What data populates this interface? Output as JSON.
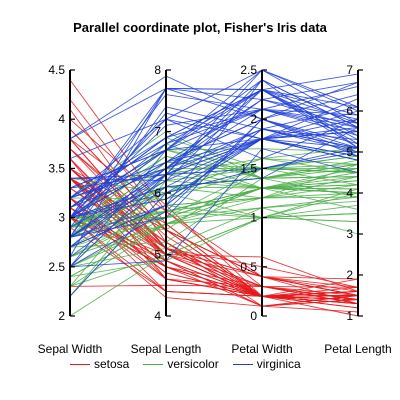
{
  "chart_data": {
    "type": "parallel-coordinates",
    "title": "Parallel coordinate plot, Fisher's Iris data",
    "axes": [
      {
        "name": "Sepal Width",
        "range": [
          2,
          4.5
        ],
        "ticks": [
          "2",
          "2.5",
          "3",
          "3.5",
          "4",
          "4.5"
        ],
        "tick_values": [
          2,
          2.5,
          3,
          3.5,
          4,
          4.5
        ]
      },
      {
        "name": "Sepal Length",
        "range": [
          4,
          8
        ],
        "ticks": [
          "4",
          "5",
          "6",
          "7",
          "8"
        ],
        "tick_values": [
          4,
          5,
          6,
          7,
          8
        ]
      },
      {
        "name": "Petal Width",
        "range": [
          0,
          2.5
        ],
        "ticks": [
          "0",
          "0.5",
          "1",
          "1.5",
          "2",
          "2.5"
        ],
        "tick_values": [
          0,
          0.5,
          1,
          1.5,
          2,
          2.5
        ]
      },
      {
        "name": "Petal Length",
        "range": [
          1,
          7
        ],
        "ticks": [
          "1",
          "2",
          "3",
          "4",
          "5",
          "6",
          "7"
        ],
        "tick_values": [
          1,
          2,
          3,
          4,
          5,
          6,
          7
        ]
      }
    ],
    "series": [
      {
        "name": "setosa",
        "color": "#e41a1c",
        "records": [
          [
            3.5,
            5.1,
            0.2,
            1.4
          ],
          [
            3.0,
            4.9,
            0.2,
            1.4
          ],
          [
            3.2,
            4.7,
            0.2,
            1.3
          ],
          [
            3.1,
            4.6,
            0.2,
            1.5
          ],
          [
            3.6,
            5.0,
            0.2,
            1.4
          ],
          [
            3.9,
            5.4,
            0.4,
            1.7
          ],
          [
            3.4,
            4.6,
            0.3,
            1.4
          ],
          [
            3.4,
            5.0,
            0.2,
            1.5
          ],
          [
            2.9,
            4.4,
            0.2,
            1.4
          ],
          [
            3.1,
            4.9,
            0.1,
            1.5
          ],
          [
            3.7,
            5.4,
            0.2,
            1.5
          ],
          [
            3.4,
            4.8,
            0.2,
            1.6
          ],
          [
            3.0,
            4.8,
            0.1,
            1.4
          ],
          [
            3.0,
            4.3,
            0.1,
            1.1
          ],
          [
            4.0,
            5.8,
            0.2,
            1.2
          ],
          [
            4.4,
            5.7,
            0.4,
            1.5
          ],
          [
            3.9,
            5.4,
            0.4,
            1.3
          ],
          [
            3.5,
            5.1,
            0.3,
            1.4
          ],
          [
            3.8,
            5.7,
            0.3,
            1.7
          ],
          [
            3.8,
            5.1,
            0.3,
            1.5
          ],
          [
            3.4,
            5.4,
            0.2,
            1.7
          ],
          [
            3.7,
            5.1,
            0.4,
            1.5
          ],
          [
            3.6,
            4.6,
            0.2,
            1.0
          ],
          [
            3.3,
            5.1,
            0.5,
            1.7
          ],
          [
            3.4,
            4.8,
            0.2,
            1.9
          ],
          [
            3.0,
            5.0,
            0.2,
            1.6
          ],
          [
            3.4,
            5.0,
            0.4,
            1.6
          ],
          [
            3.5,
            5.2,
            0.2,
            1.5
          ],
          [
            3.4,
            5.2,
            0.2,
            1.4
          ],
          [
            3.2,
            4.7,
            0.2,
            1.6
          ],
          [
            3.1,
            4.8,
            0.2,
            1.6
          ],
          [
            3.4,
            5.4,
            0.4,
            1.5
          ],
          [
            4.1,
            5.2,
            0.1,
            1.5
          ],
          [
            4.2,
            5.5,
            0.2,
            1.4
          ],
          [
            3.1,
            4.9,
            0.2,
            1.5
          ],
          [
            3.2,
            5.0,
            0.2,
            1.2
          ],
          [
            3.5,
            5.5,
            0.2,
            1.3
          ],
          [
            3.6,
            4.9,
            0.1,
            1.4
          ],
          [
            3.0,
            4.4,
            0.2,
            1.3
          ],
          [
            3.4,
            5.1,
            0.2,
            1.5
          ],
          [
            3.5,
            5.0,
            0.3,
            1.3
          ],
          [
            2.3,
            4.5,
            0.3,
            1.3
          ],
          [
            3.2,
            4.4,
            0.2,
            1.3
          ],
          [
            3.5,
            5.0,
            0.6,
            1.6
          ],
          [
            3.8,
            5.1,
            0.4,
            1.9
          ],
          [
            3.0,
            4.8,
            0.3,
            1.4
          ],
          [
            3.8,
            5.1,
            0.2,
            1.6
          ],
          [
            3.2,
            4.6,
            0.2,
            1.4
          ],
          [
            3.7,
            5.3,
            0.2,
            1.5
          ],
          [
            3.3,
            5.0,
            0.2,
            1.4
          ]
        ]
      },
      {
        "name": "versicolor",
        "color": "#4daf4a",
        "records": [
          [
            3.2,
            7.0,
            1.4,
            4.7
          ],
          [
            3.2,
            6.4,
            1.5,
            4.5
          ],
          [
            3.1,
            6.9,
            1.5,
            4.9
          ],
          [
            2.3,
            5.5,
            1.3,
            4.0
          ],
          [
            2.8,
            6.5,
            1.5,
            4.6
          ],
          [
            2.8,
            5.7,
            1.3,
            4.5
          ],
          [
            3.3,
            6.3,
            1.6,
            4.7
          ],
          [
            2.4,
            4.9,
            1.0,
            3.3
          ],
          [
            2.9,
            6.6,
            1.3,
            4.6
          ],
          [
            2.7,
            5.2,
            1.4,
            3.9
          ],
          [
            2.0,
            5.0,
            1.0,
            3.5
          ],
          [
            3.0,
            5.9,
            1.5,
            4.2
          ],
          [
            2.2,
            6.0,
            1.0,
            4.0
          ],
          [
            2.9,
            6.1,
            1.4,
            4.7
          ],
          [
            2.9,
            5.6,
            1.3,
            3.6
          ],
          [
            3.1,
            6.7,
            1.4,
            4.4
          ],
          [
            3.0,
            5.6,
            1.5,
            4.5
          ],
          [
            2.7,
            5.8,
            1.0,
            4.1
          ],
          [
            2.2,
            6.2,
            1.5,
            4.5
          ],
          [
            2.5,
            5.6,
            1.1,
            3.9
          ],
          [
            3.2,
            5.9,
            1.8,
            4.8
          ],
          [
            2.8,
            6.1,
            1.3,
            4.0
          ],
          [
            2.5,
            6.3,
            1.5,
            4.9
          ],
          [
            2.8,
            6.1,
            1.2,
            4.7
          ],
          [
            2.9,
            6.4,
            1.3,
            4.3
          ],
          [
            3.0,
            6.6,
            1.4,
            4.4
          ],
          [
            2.8,
            6.8,
            1.4,
            4.8
          ],
          [
            3.0,
            6.7,
            1.7,
            5.0
          ],
          [
            2.9,
            6.0,
            1.5,
            4.5
          ],
          [
            2.6,
            5.7,
            1.0,
            3.5
          ],
          [
            2.4,
            5.5,
            1.1,
            3.8
          ],
          [
            2.4,
            5.5,
            1.0,
            3.7
          ],
          [
            2.7,
            5.8,
            1.2,
            3.9
          ],
          [
            2.7,
            6.0,
            1.6,
            5.1
          ],
          [
            3.0,
            5.4,
            1.5,
            4.5
          ],
          [
            3.4,
            6.0,
            1.6,
            4.5
          ],
          [
            3.1,
            6.7,
            1.5,
            4.7
          ],
          [
            2.3,
            6.3,
            1.3,
            4.4
          ],
          [
            3.0,
            5.6,
            1.3,
            4.1
          ],
          [
            2.5,
            5.5,
            1.3,
            4.0
          ],
          [
            2.6,
            5.5,
            1.2,
            4.4
          ],
          [
            3.0,
            6.1,
            1.4,
            4.6
          ],
          [
            2.6,
            5.8,
            1.2,
            4.0
          ],
          [
            2.3,
            5.0,
            1.0,
            3.3
          ],
          [
            2.7,
            5.6,
            1.3,
            4.2
          ],
          [
            3.0,
            5.7,
            1.2,
            4.2
          ],
          [
            2.9,
            5.7,
            1.3,
            4.2
          ],
          [
            2.9,
            6.2,
            1.3,
            4.3
          ],
          [
            2.5,
            5.1,
            1.1,
            3.0
          ],
          [
            2.8,
            5.7,
            1.3,
            4.1
          ]
        ]
      },
      {
        "name": "virginica",
        "color": "#1f3fd8",
        "records": [
          [
            3.3,
            6.3,
            2.5,
            6.0
          ],
          [
            2.7,
            5.8,
            1.9,
            5.1
          ],
          [
            3.0,
            7.1,
            2.1,
            5.9
          ],
          [
            2.9,
            6.3,
            1.8,
            5.6
          ],
          [
            3.0,
            6.5,
            2.2,
            5.8
          ],
          [
            3.0,
            7.6,
            2.1,
            6.6
          ],
          [
            2.5,
            4.9,
            1.7,
            4.5
          ],
          [
            2.9,
            7.3,
            1.8,
            6.3
          ],
          [
            2.5,
            6.7,
            1.8,
            5.8
          ],
          [
            3.6,
            7.2,
            2.5,
            6.1
          ],
          [
            3.2,
            6.5,
            2.0,
            5.1
          ],
          [
            2.7,
            6.4,
            1.9,
            5.3
          ],
          [
            3.0,
            6.8,
            2.1,
            5.5
          ],
          [
            2.5,
            5.7,
            2.0,
            5.0
          ],
          [
            2.8,
            5.8,
            2.4,
            5.1
          ],
          [
            3.2,
            6.4,
            2.3,
            5.3
          ],
          [
            3.0,
            6.5,
            1.8,
            5.5
          ],
          [
            3.8,
            7.7,
            2.2,
            6.7
          ],
          [
            2.6,
            7.7,
            2.3,
            6.9
          ],
          [
            2.2,
            6.0,
            1.5,
            5.0
          ],
          [
            3.2,
            6.9,
            2.3,
            5.7
          ],
          [
            2.8,
            5.6,
            2.0,
            4.9
          ],
          [
            2.8,
            7.7,
            2.0,
            6.7
          ],
          [
            2.7,
            6.3,
            1.8,
            4.9
          ],
          [
            3.3,
            6.7,
            2.1,
            5.7
          ],
          [
            3.2,
            7.2,
            1.8,
            6.0
          ],
          [
            2.8,
            6.2,
            1.8,
            4.8
          ],
          [
            3.0,
            6.1,
            1.8,
            4.9
          ],
          [
            2.8,
            6.4,
            2.1,
            5.6
          ],
          [
            3.0,
            7.2,
            1.6,
            5.8
          ],
          [
            2.8,
            7.4,
            1.9,
            6.1
          ],
          [
            3.8,
            7.9,
            2.0,
            6.4
          ],
          [
            2.8,
            6.4,
            2.2,
            5.6
          ],
          [
            2.8,
            6.3,
            1.5,
            5.1
          ],
          [
            2.6,
            6.1,
            1.4,
            5.6
          ],
          [
            3.0,
            7.7,
            2.3,
            6.1
          ],
          [
            3.4,
            6.3,
            2.4,
            5.6
          ],
          [
            3.1,
            6.4,
            1.8,
            5.5
          ],
          [
            3.0,
            6.0,
            1.8,
            4.8
          ],
          [
            3.1,
            6.9,
            2.1,
            5.4
          ],
          [
            3.1,
            6.7,
            2.4,
            5.6
          ],
          [
            3.1,
            6.9,
            2.3,
            5.1
          ],
          [
            2.7,
            5.8,
            1.9,
            5.1
          ],
          [
            3.2,
            6.8,
            2.3,
            5.9
          ],
          [
            3.3,
            6.7,
            2.5,
            5.7
          ],
          [
            3.0,
            6.7,
            2.3,
            5.2
          ],
          [
            2.5,
            6.3,
            1.9,
            5.0
          ],
          [
            3.0,
            6.5,
            2.0,
            5.2
          ],
          [
            3.4,
            6.2,
            2.3,
            5.4
          ],
          [
            3.0,
            5.9,
            1.8,
            5.1
          ]
        ]
      }
    ],
    "legend_placement": "bottom",
    "grid": false
  }
}
